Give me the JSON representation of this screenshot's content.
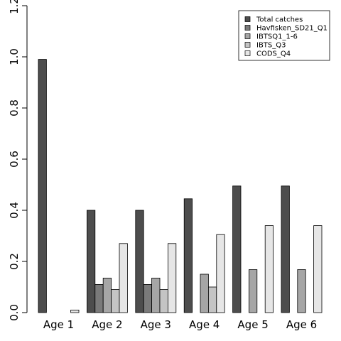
{
  "chart_data": {
    "type": "bar",
    "title": "",
    "xlabel": "",
    "ylabel": "",
    "ylim": [
      0,
      1.2
    ],
    "yticks": [
      0.0,
      0.2,
      0.4,
      0.6,
      0.8,
      1.0,
      1.2
    ],
    "ytick_labels": [
      "0.0",
      "0.2",
      "0.4",
      "0.6",
      "0.8",
      "1.0",
      "1.2"
    ],
    "categories": [
      "Age 1",
      "Age 2",
      "Age 3",
      "Age 4",
      "Age 5",
      "Age 6"
    ],
    "legend_position": "top-right",
    "series": [
      {
        "name": "Total catches",
        "color": "#4d4d4d",
        "values": [
          0.99,
          0.4,
          0.4,
          0.445,
          0.495,
          0.495
        ]
      },
      {
        "name": "Havfisken_SD21_Q1",
        "color": "#7a7a7a",
        "values": [
          0.0,
          0.11,
          0.11,
          0.0,
          0.0,
          0.0
        ]
      },
      {
        "name": "IBTSQ1_1-6",
        "color": "#a6a6a6",
        "values": [
          0.0,
          0.135,
          0.135,
          0.15,
          0.168,
          0.168
        ]
      },
      {
        "name": "IBTS_Q3",
        "color": "#c4c4c4",
        "values": [
          0.0,
          0.09,
          0.09,
          0.1,
          0.0,
          0.0
        ]
      },
      {
        "name": "CODS_Q4",
        "color": "#e6e6e6",
        "values": [
          0.01,
          0.27,
          0.27,
          0.305,
          0.34,
          0.34
        ]
      }
    ]
  }
}
